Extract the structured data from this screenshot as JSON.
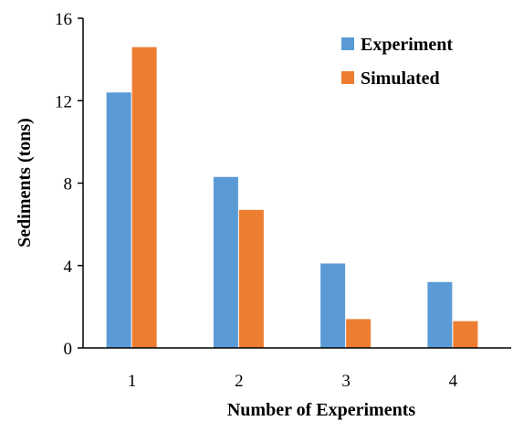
{
  "chart_data": {
    "type": "bar",
    "categories": [
      "1",
      "2",
      "3",
      "4"
    ],
    "series": [
      {
        "name": "Experiment",
        "values": [
          12.4,
          8.3,
          4.1,
          3.2
        ],
        "color": "#5B9BD5"
      },
      {
        "name": "Simulated",
        "values": [
          14.6,
          6.7,
          1.4,
          1.3
        ],
        "color": "#ED7D31"
      }
    ],
    "title": "",
    "xlabel": "Number of Experiments",
    "ylabel": "Sediments (tons)",
    "ylim": [
      0,
      16
    ],
    "yticks": [
      "0",
      "4",
      "8",
      "12",
      "16"
    ],
    "grid": false,
    "legend_position": "top-right"
  }
}
